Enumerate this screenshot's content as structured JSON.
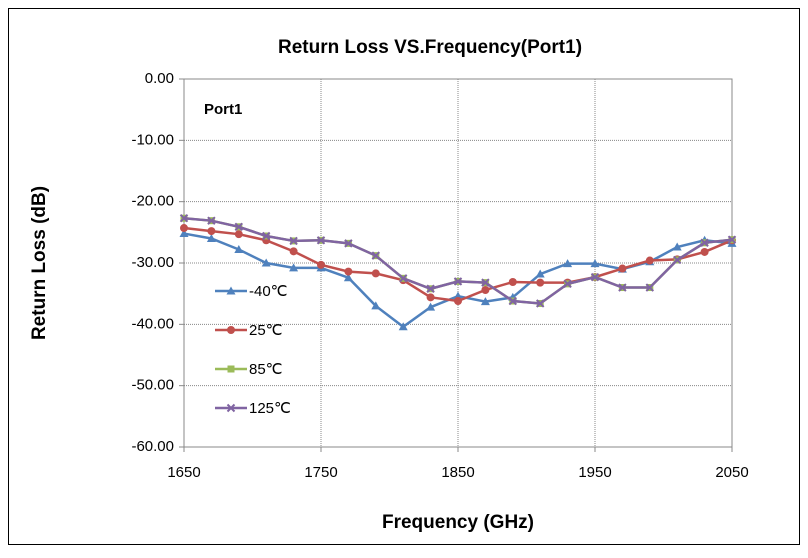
{
  "chart_data": {
    "type": "line",
    "title": "Return Loss VS.Frequency(Port1)",
    "annotation": "Port1",
    "x_label": "Frequency (GHz)",
    "y_label": "Return Loss (dB)",
    "x": [
      1650,
      1670,
      1690,
      1710,
      1730,
      1750,
      1770,
      1790,
      1810,
      1830,
      1850,
      1870,
      1890,
      1910,
      1930,
      1950,
      1970,
      1990,
      2010,
      2030,
      2050
    ],
    "xlim": [
      1650,
      2050
    ],
    "xticks": [
      1650,
      1750,
      1850,
      1950,
      2050
    ],
    "ylim": [
      -60,
      0
    ],
    "yticks": [
      {
        "value": 0,
        "label": "0.00"
      },
      {
        "value": -10,
        "label": "-10.00"
      },
      {
        "value": -20,
        "label": "-20.00"
      },
      {
        "value": -30,
        "label": "-30.00"
      },
      {
        "value": -40,
        "label": "-40.00"
      },
      {
        "value": -50,
        "label": "-50.00"
      },
      {
        "value": -60,
        "label": "-60.00"
      }
    ],
    "grid": true,
    "legend_position": "center-left",
    "series": [
      {
        "name": "-40℃",
        "color": "#4f81bd",
        "marker": "triangle",
        "values": [
          -25.2,
          -26,
          -27.8,
          -30,
          -30.8,
          -30.8,
          -32.4,
          -37,
          -40.4,
          -37.2,
          -35.4,
          -36.3,
          -35.6,
          -31.8,
          -30.1,
          -30.1,
          -31,
          -29.8,
          -27.4,
          -26.3,
          -26.8
        ]
      },
      {
        "name": "25℃",
        "color": "#c0504d",
        "marker": "circle",
        "values": [
          -24.3,
          -24.8,
          -25.3,
          -26.3,
          -28.1,
          -30.3,
          -31.4,
          -31.7,
          -32.8,
          -35.6,
          -36.2,
          -34.4,
          -33.1,
          -33.2,
          -33.2,
          -32.3,
          -30.9,
          -29.6,
          -29.4,
          -28.2,
          -26.3
        ]
      },
      {
        "name": "85℃",
        "color": "#9bbb59",
        "marker": "square",
        "values": [
          -22.7,
          -23.1,
          -24.1,
          -25.6,
          -26.4,
          -26.3,
          -26.8,
          -28.8,
          -32.5,
          -34.2,
          -33,
          -33.2,
          -36.2,
          -36.6,
          -33.4,
          -32.3,
          -34,
          -34,
          -29.5,
          -26.7,
          -26.2
        ]
      },
      {
        "name": "125℃",
        "color": "#8064a2",
        "marker": "x",
        "values": [
          -22.7,
          -23.1,
          -24.1,
          -25.6,
          -26.4,
          -26.3,
          -26.8,
          -28.8,
          -32.5,
          -34.2,
          -33,
          -33.2,
          -36.2,
          -36.6,
          -33.4,
          -32.3,
          -34,
          -34,
          -29.5,
          -26.7,
          -26.2
        ]
      }
    ]
  }
}
